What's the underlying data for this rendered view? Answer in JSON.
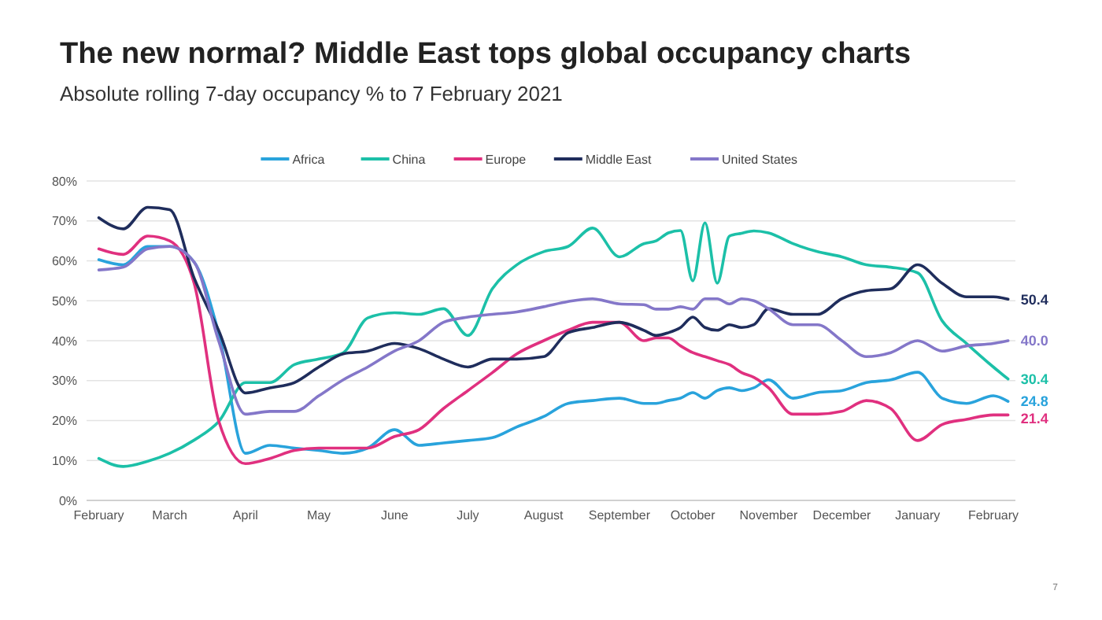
{
  "chart_data": {
    "type": "line",
    "title": "The new normal?  Middle East tops global occupancy charts",
    "subtitle": "Absolute rolling 7-day occupancy % to 7 February 2021",
    "x": [
      "2020-02-01",
      "2020-02-11",
      "2020-02-21",
      "2020-03-01",
      "2020-03-11",
      "2020-03-21",
      "2020-04-01",
      "2020-04-11",
      "2020-04-21",
      "2020-05-01",
      "2020-05-11",
      "2020-05-21",
      "2020-06-01",
      "2020-06-11",
      "2020-06-21",
      "2020-07-01",
      "2020-07-11",
      "2020-07-21",
      "2020-08-01",
      "2020-08-11",
      "2020-08-21",
      "2020-09-01",
      "2020-09-11",
      "2020-09-16",
      "2020-09-21",
      "2020-09-26",
      "2020-10-01",
      "2020-10-06",
      "2020-10-11",
      "2020-10-16",
      "2020-10-21",
      "2020-10-26",
      "2020-11-01",
      "2020-11-11",
      "2020-11-21",
      "2020-12-01",
      "2020-12-11",
      "2020-12-21",
      "2021-01-01",
      "2021-01-11",
      "2021-01-21",
      "2021-02-01",
      "2021-02-07"
    ],
    "series": [
      {
        "name": "Africa",
        "color": "#29a3dc",
        "values": [
          60.3,
          59,
          63.6,
          63.6,
          59.7,
          42,
          11.8,
          13.8,
          13.1,
          12.5,
          11.8,
          13.1,
          17.7,
          13.8,
          14.4,
          15,
          15.7,
          18.4,
          21,
          24.3,
          25,
          25.6,
          24.3,
          24.3,
          25,
          25.6,
          27,
          25.6,
          27.5,
          28.2,
          27.5,
          28.2,
          30.2,
          25.6,
          27,
          27.5,
          29.5,
          30.2,
          32.1,
          25.6,
          24.3,
          26.2,
          24.8
        ],
        "value_labels": [
          null,
          null,
          null,
          null,
          null,
          null,
          null,
          null,
          null,
          null,
          null,
          null,
          null,
          null,
          null,
          null,
          null,
          null,
          null,
          null,
          null,
          null,
          null,
          null,
          null,
          null,
          null,
          null,
          null,
          null,
          null,
          null,
          null,
          null,
          null,
          null,
          null,
          null,
          null,
          null,
          null,
          null,
          "24.8"
        ]
      },
      {
        "name": "China",
        "color": "#1cc0a8",
        "values": [
          10.5,
          8.5,
          9.8,
          11.8,
          15.1,
          19.7,
          29.5,
          29.5,
          34,
          35.4,
          37,
          45.7,
          47,
          46.6,
          48,
          41.3,
          53,
          59,
          62.3,
          63.6,
          68.2,
          61,
          64.3,
          65,
          67,
          67.6,
          55,
          69.5,
          54.4,
          66.2,
          66.9,
          67.5,
          67,
          64.3,
          62.3,
          61,
          59,
          58.4,
          57,
          45,
          39.3,
          33.4,
          30.4
        ],
        "value_labels": [
          null,
          null,
          null,
          null,
          null,
          null,
          null,
          null,
          null,
          null,
          null,
          null,
          null,
          null,
          null,
          null,
          null,
          null,
          null,
          null,
          null,
          null,
          null,
          null,
          null,
          null,
          null,
          null,
          null,
          null,
          null,
          null,
          null,
          null,
          null,
          null,
          null,
          null,
          null,
          null,
          null,
          null,
          "30.4"
        ]
      },
      {
        "name": "Europe",
        "color": "#e0307f",
        "values": [
          63,
          61.6,
          66.2,
          65,
          54.4,
          20,
          9.2,
          10.5,
          12.5,
          13.1,
          13.1,
          13.1,
          16,
          17.7,
          23,
          27.5,
          32,
          36.7,
          40,
          42.6,
          44.6,
          44.6,
          40,
          40.7,
          40.7,
          38.7,
          37,
          36,
          35,
          34,
          32,
          30.8,
          28.2,
          21.6,
          21.6,
          22.3,
          25,
          23,
          15,
          19,
          20.3,
          21.4,
          21.4
        ],
        "value_labels": [
          null,
          null,
          null,
          null,
          null,
          null,
          null,
          null,
          null,
          null,
          null,
          null,
          null,
          null,
          null,
          null,
          null,
          null,
          null,
          null,
          null,
          null,
          null,
          null,
          null,
          null,
          null,
          null,
          null,
          null,
          null,
          null,
          null,
          null,
          null,
          null,
          null,
          null,
          null,
          null,
          null,
          null,
          "21.4"
        ]
      },
      {
        "name": "Middle East",
        "color": "#1f2d5c",
        "values": [
          70.8,
          68,
          73.4,
          72.8,
          55.7,
          42.6,
          26.9,
          28.2,
          29.5,
          33.4,
          36.7,
          37.4,
          39.3,
          38,
          35.4,
          33.4,
          35.4,
          35.4,
          36,
          42,
          43.3,
          44.6,
          42.6,
          41.3,
          42,
          43.3,
          45.9,
          43.3,
          42.6,
          44,
          43.3,
          44,
          48,
          46.6,
          46.6,
          50.5,
          52.5,
          53,
          59,
          54.4,
          51,
          51,
          50.4
        ],
        "value_labels": [
          null,
          null,
          null,
          null,
          null,
          null,
          null,
          null,
          null,
          null,
          null,
          null,
          null,
          null,
          null,
          null,
          null,
          null,
          null,
          null,
          null,
          null,
          null,
          null,
          null,
          null,
          null,
          null,
          null,
          null,
          null,
          null,
          null,
          null,
          null,
          null,
          null,
          null,
          null,
          null,
          null,
          null,
          "50.4"
        ]
      },
      {
        "name": "United States",
        "color": "#8477c9",
        "values": [
          57.7,
          58.4,
          63,
          63.6,
          59.7,
          40,
          21.6,
          22.3,
          22.3,
          26.2,
          30.2,
          33.4,
          37.4,
          40,
          44.6,
          45.9,
          46.6,
          47.2,
          48.5,
          49.8,
          50.5,
          49.2,
          49,
          47.9,
          47.9,
          48.5,
          47.9,
          50.5,
          50.5,
          49.2,
          50.5,
          50,
          48,
          44,
          44,
          40,
          36,
          37,
          40,
          37.4,
          38.7,
          39.3,
          40
        ],
        "value_labels": [
          null,
          null,
          null,
          null,
          null,
          null,
          null,
          null,
          null,
          null,
          null,
          null,
          null,
          null,
          null,
          null,
          null,
          null,
          null,
          null,
          null,
          null,
          null,
          null,
          null,
          null,
          null,
          null,
          null,
          null,
          null,
          null,
          null,
          null,
          null,
          null,
          null,
          null,
          null,
          null,
          null,
          null,
          "40.0"
        ]
      }
    ],
    "xlim": [
      "2020-01-27",
      "2021-02-10"
    ],
    "xticks": [
      {
        "value": "2020-02-01",
        "label": "February"
      },
      {
        "value": "2020-03-01",
        "label": "March"
      },
      {
        "value": "2020-04-01",
        "label": "April"
      },
      {
        "value": "2020-05-01",
        "label": "May"
      },
      {
        "value": "2020-06-01",
        "label": "June"
      },
      {
        "value": "2020-07-01",
        "label": "July"
      },
      {
        "value": "2020-08-01",
        "label": "August"
      },
      {
        "value": "2020-09-01",
        "label": "September"
      },
      {
        "value": "2020-10-01",
        "label": "October"
      },
      {
        "value": "2020-11-01",
        "label": "November"
      },
      {
        "value": "2020-12-01",
        "label": "December"
      },
      {
        "value": "2021-01-01",
        "label": "January"
      },
      {
        "value": "2021-02-01",
        "label": "February"
      }
    ],
    "ylim": [
      0,
      80
    ],
    "yticks": [
      {
        "value": 0,
        "label": "0%"
      },
      {
        "value": 10,
        "label": "10%"
      },
      {
        "value": 20,
        "label": "20%"
      },
      {
        "value": 30,
        "label": "30%"
      },
      {
        "value": 40,
        "label": "40%"
      },
      {
        "value": 50,
        "label": "50%"
      },
      {
        "value": 60,
        "label": "60%"
      },
      {
        "value": 70,
        "label": "70%"
      },
      {
        "value": 80,
        "label": "80%"
      }
    ],
    "grid": "y",
    "legend": "top",
    "marker": "none",
    "line_style": "solid",
    "annotations": [
      "7"
    ]
  }
}
